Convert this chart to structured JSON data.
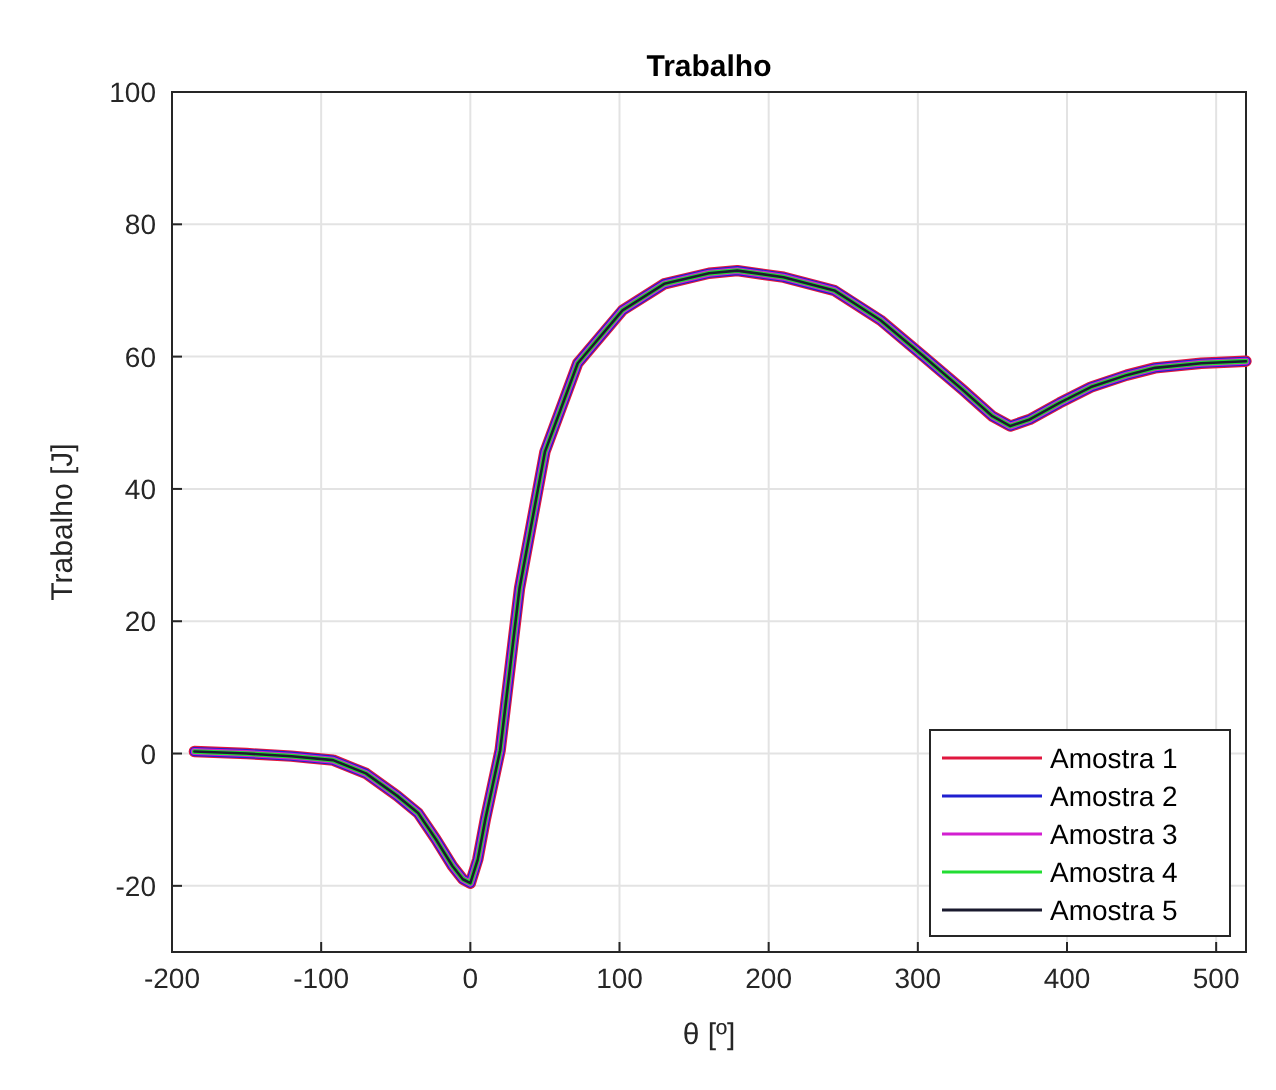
{
  "chart_data": {
    "type": "line",
    "title": "Trabalho",
    "xlabel": "θ [º]",
    "ylabel": "Trabalho [J]",
    "x": [
      -185,
      -150,
      -120,
      -92,
      -70,
      -49,
      -35,
      -23,
      -12,
      -5,
      0,
      5,
      10,
      20,
      33,
      50,
      72,
      102,
      130,
      160,
      179,
      210,
      244,
      275,
      304,
      330,
      350,
      362,
      375,
      395,
      416,
      440,
      459,
      490,
      520
    ],
    "series": [
      {
        "name": "Amostra 1",
        "color": "#e0173f",
        "values": [
          0.3,
          0,
          -0.4,
          -1,
          -3,
          -6.4,
          -9,
          -13,
          -17,
          -19,
          -19.6,
          -16,
          -10,
          0.5,
          25,
          45.6,
          59,
          67,
          71,
          72.6,
          73,
          72,
          70,
          65.5,
          60,
          55,
          51,
          49.5,
          50.5,
          53,
          55.4,
          57.2,
          58.3,
          59,
          59.3
        ]
      },
      {
        "name": "Amostra 2",
        "color": "#1f1fd0",
        "values": [
          0.3,
          0,
          -0.4,
          -1,
          -3,
          -6.4,
          -9,
          -13,
          -17,
          -19,
          -19.6,
          -16,
          -10,
          0.5,
          25,
          45.6,
          59,
          67,
          71,
          72.6,
          73,
          72,
          70,
          65.5,
          60,
          55,
          51,
          49.5,
          50.5,
          53,
          55.4,
          57.2,
          58.3,
          59,
          59.3
        ]
      },
      {
        "name": "Amostra 3",
        "color": "#d21fd0",
        "values": [
          0.3,
          0,
          -0.4,
          -1,
          -3,
          -6.4,
          -9,
          -13,
          -17,
          -19,
          -19.6,
          -16,
          -10,
          0.5,
          25,
          45.6,
          59,
          67,
          71,
          72.6,
          73,
          72,
          70,
          65.5,
          60,
          55,
          51,
          49.5,
          50.5,
          53,
          55.4,
          57.2,
          58.3,
          59,
          59.3
        ]
      },
      {
        "name": "Amostra 4",
        "color": "#22dd33",
        "values": [
          0.3,
          0,
          -0.4,
          -1,
          -3,
          -6.4,
          -9,
          -13,
          -17,
          -19,
          -19.6,
          -16,
          -10,
          0.5,
          25,
          45.6,
          59,
          67,
          71,
          72.6,
          73,
          72,
          70,
          65.5,
          60,
          55,
          51,
          49.5,
          50.5,
          53,
          55.4,
          57.2,
          58.3,
          59,
          59.3
        ]
      },
      {
        "name": "Amostra 5",
        "color": "#1a1a2e",
        "values": [
          0.3,
          0,
          -0.4,
          -1,
          -3,
          -6.4,
          -9,
          -13,
          -17,
          -19,
          -19.6,
          -16,
          -10,
          0.5,
          25,
          45.6,
          59,
          67,
          71,
          72.6,
          73,
          72,
          70,
          65.5,
          60,
          55,
          51,
          49.5,
          50.5,
          53,
          55.4,
          57.2,
          58.3,
          59,
          59.3
        ]
      }
    ],
    "xlim": [
      -200,
      520
    ],
    "xticks": [
      -200,
      -100,
      0,
      100,
      200,
      300,
      400,
      500
    ],
    "ylim": [
      -30,
      100
    ],
    "yticks": [
      -20,
      0,
      20,
      40,
      60,
      80,
      100
    ],
    "grid": true,
    "legend": "bottom right",
    "line_style": "solid",
    "marker": "none"
  }
}
